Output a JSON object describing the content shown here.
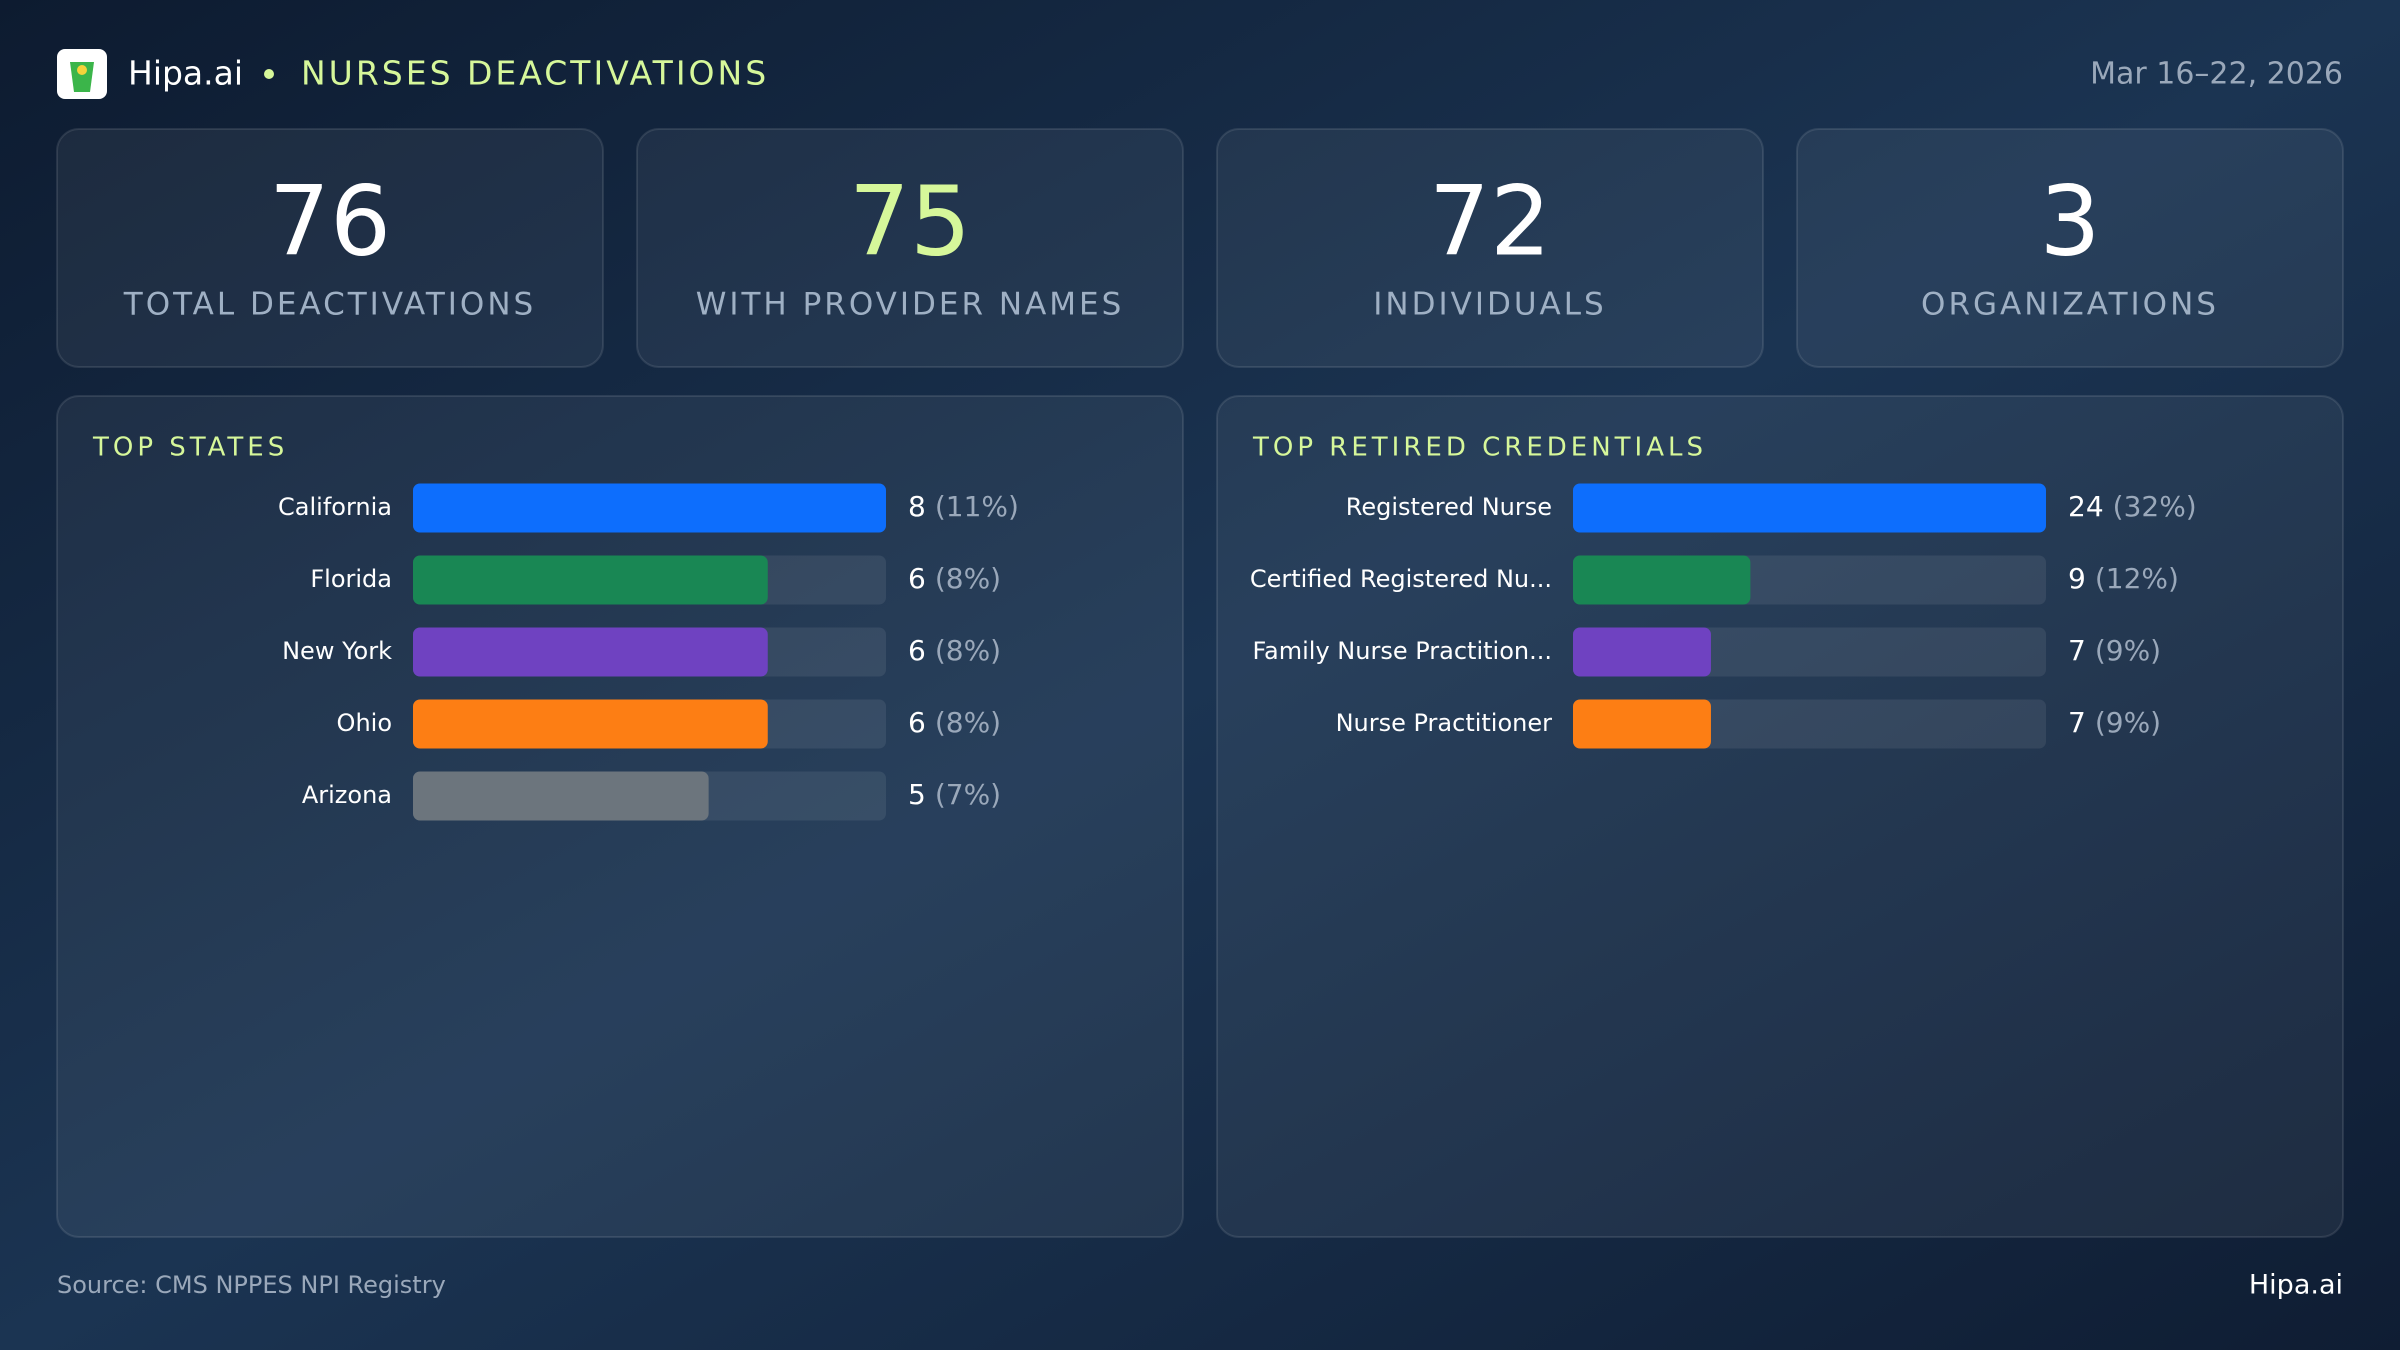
{
  "header": {
    "brand": "Hipa.ai",
    "title": "NURSES DEACTIVATIONS",
    "date": "Mar 16–22, 2026"
  },
  "kpis": [
    {
      "value": 76,
      "label": "TOTAL DEACTIVATIONS",
      "color": "#ffffff"
    },
    {
      "value": 75,
      "label": "WITH PROVIDER NAMES",
      "color": "#d6f79a"
    },
    {
      "value": 72,
      "label": "INDIVIDUALS",
      "color": "#ffffff"
    },
    {
      "value": 3,
      "label": "ORGANIZATIONS",
      "color": "#ffffff"
    }
  ],
  "chart_data": [
    {
      "type": "bar",
      "title": "TOP STATES",
      "categories": [
        "California",
        "Florida",
        "New York",
        "Ohio",
        "Arizona"
      ],
      "values": [
        8,
        6,
        6,
        6,
        5
      ],
      "share_labels": [
        "(11%)",
        "(8%)",
        "(8%)",
        "(8%)",
        "(7%)"
      ],
      "colors": [
        "#0d6efd",
        "#198754",
        "#6f42c1",
        "#fd7e14",
        "#6c757d"
      ]
    },
    {
      "type": "bar",
      "title": "TOP RETIRED CREDENTIALS",
      "categories": [
        "Registered Nurse",
        "Certified Registered Nu...",
        "Family Nurse Practition...",
        "Nurse Practitioner"
      ],
      "values": [
        24,
        9,
        7,
        7
      ],
      "share_labels": [
        "(32%)",
        "(12%)",
        "(9%)",
        "(9%)"
      ],
      "colors": [
        "#0d6efd",
        "#198754",
        "#6f42c1",
        "#fd7e14"
      ]
    }
  ],
  "footer": {
    "source": "Source: CMS NPPES NPI Registry",
    "brand": "Hipa.ai"
  }
}
